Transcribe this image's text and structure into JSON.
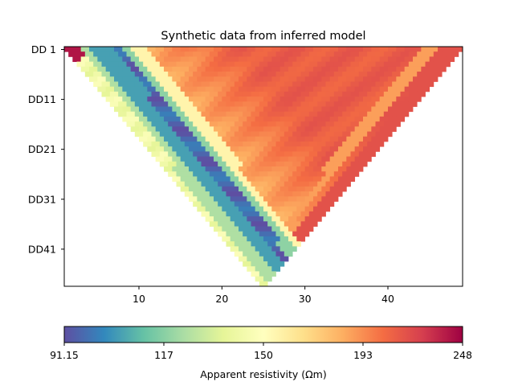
{
  "chart_data": {
    "type": "heatmap",
    "title": "Synthetic data from inferred model",
    "xlabel": "",
    "ylabel": "",
    "xlim": [
      1,
      49
    ],
    "x_ticks": [
      10,
      20,
      30,
      40
    ],
    "y_ticks": [
      "DD 1",
      "DD11",
      "DD21",
      "DD31",
      "DD41"
    ],
    "y_tick_levels": [
      1,
      11,
      21,
      31,
      41
    ],
    "n_levels": 48,
    "colorbar": {
      "label": "Apparent resistivity (Ωm)",
      "ticks": [
        "91.15",
        "117",
        "150",
        "193",
        "248"
      ],
      "range": [
        91.15,
        248
      ],
      "colors": [
        "#5e4fa2",
        "#3288bd",
        "#66c2a5",
        "#abdda4",
        "#e6f598",
        "#ffffbf",
        "#fee08b",
        "#fdae61",
        "#f46d43",
        "#d53e4f",
        "#9e0142"
      ]
    },
    "pseudosection": {
      "description_values": "approximate apparent resistivity per (station, level); left flank low (~100-130 Ωm band), right flank high (~190-210 Ωm)",
      "low_band_values": [
        95,
        105,
        118
      ],
      "high_values": [
        185,
        200,
        215
      ],
      "background": 150
    }
  }
}
